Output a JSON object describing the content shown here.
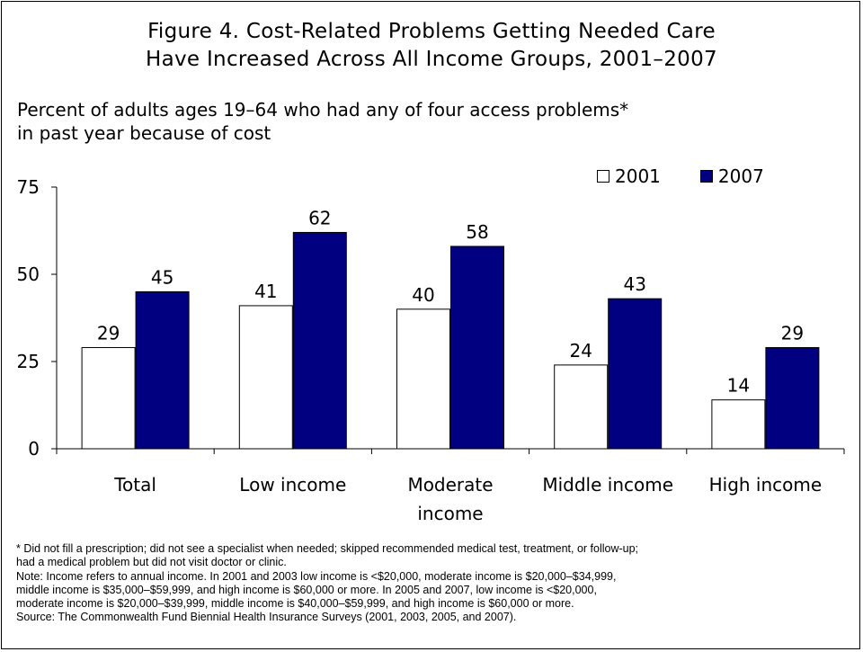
{
  "chart_data": {
    "type": "bar",
    "title_line1": "Figure 4. Cost-Related Problems Getting Needed Care",
    "title_line2": "Have Increased Across All Income Groups, 2001–2007",
    "subtitle_line1": "Percent of adults ages 19–64 who had any of four access problems*",
    "subtitle_line2": "in past year because of cost",
    "categories": [
      [
        "Total"
      ],
      [
        "Low income"
      ],
      [
        "Moderate",
        "income"
      ],
      [
        "Middle income"
      ],
      [
        "High income"
      ]
    ],
    "series": [
      {
        "name": "2001",
        "color": "#ffffff",
        "values": [
          29,
          41,
          40,
          24,
          14
        ]
      },
      {
        "name": "2007",
        "color": "#000080",
        "values": [
          45,
          62,
          58,
          43,
          29
        ]
      }
    ],
    "ylim": [
      0,
      75
    ],
    "yticks": [
      "0",
      "25",
      "50",
      "75"
    ],
    "grid": false,
    "legend_position": "top-right"
  },
  "notes": {
    "line1": "* Did not fill a prescription; did not see a specialist when needed; skipped recommended medical test, treatment, or follow-up;",
    "line2": "had a medical problem but did not visit doctor or clinic.",
    "line3": "Note: Income refers to annual income. In 2001 and 2003 low income is <$20,000, moderate income is $20,000–$34,999,",
    "line4": "middle income is $35,000–$59,999, and high income is $60,000 or more. In 2005 and 2007, low income is <$20,000,",
    "line5": "moderate income is $20,000–$39,999, middle income is $40,000–$59,999, and high income is $60,000 or more.",
    "line6": "Source: The Commonwealth Fund Biennial Health Insurance Surveys (2001, 2003, 2005, and 2007)."
  }
}
